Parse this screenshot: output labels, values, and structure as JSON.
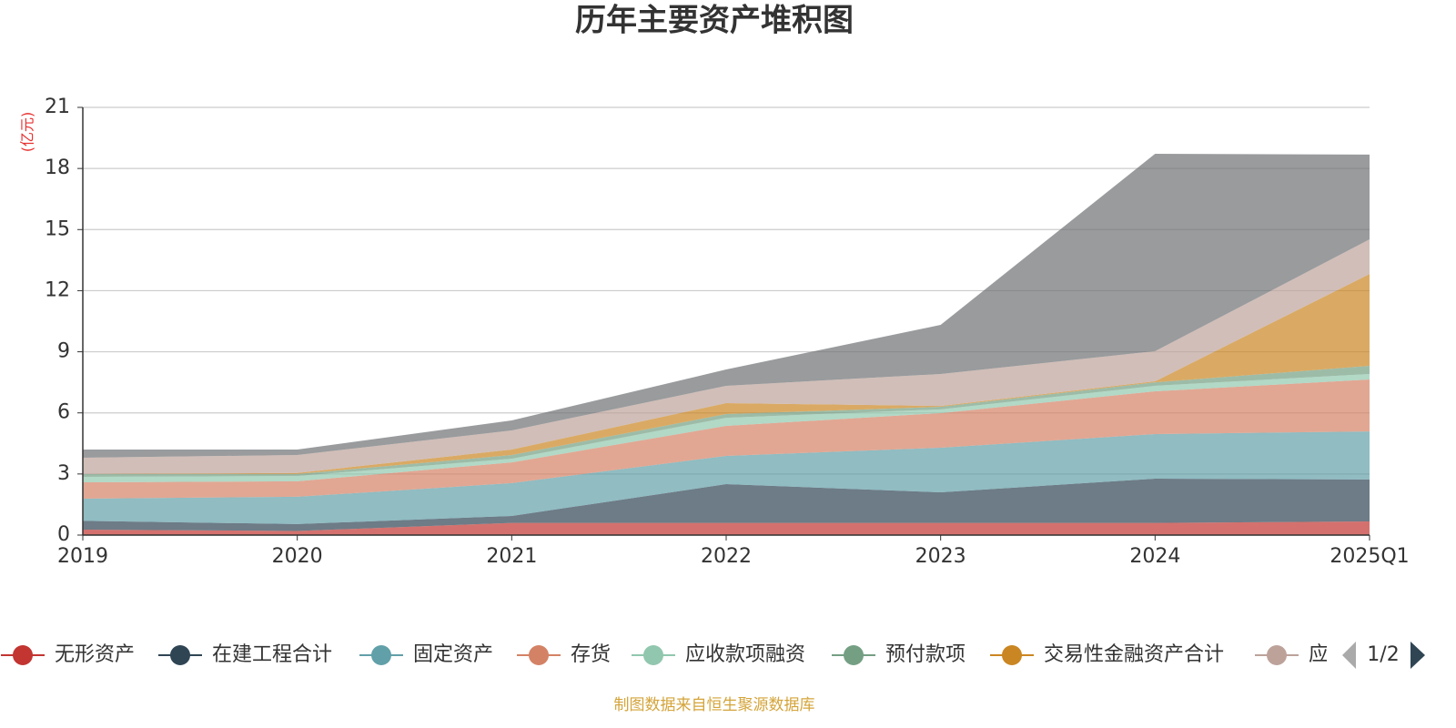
{
  "chart_data": {
    "type": "stacked-area",
    "title": "历年主要资产堆积图",
    "y_axis_label": "(亿元)",
    "categories": [
      "2019",
      "2020",
      "2021",
      "2022",
      "2023",
      "2024",
      "2025Q1"
    ],
    "ylim": [
      0,
      21
    ],
    "yticks": [
      0,
      3,
      6,
      9,
      12,
      15,
      18,
      21
    ],
    "grid": true,
    "legend_page": "1/2",
    "source": "制图数据来自恒生聚源数据库",
    "series": [
      {
        "name": "无形资产",
        "color": "#c23531",
        "values": [
          0.27,
          0.2,
          0.6,
          0.6,
          0.6,
          0.6,
          0.67
        ]
      },
      {
        "name": "在建工程合计",
        "color": "#2f4554",
        "values": [
          0.43,
          0.34,
          0.34,
          1.9,
          1.5,
          2.17,
          2.06
        ]
      },
      {
        "name": "固定资产",
        "color": "#61a0a8",
        "values": [
          1.09,
          1.34,
          1.61,
          1.39,
          2.19,
          2.19,
          2.36
        ]
      },
      {
        "name": "存货",
        "color": "#d48265",
        "values": [
          0.8,
          0.76,
          1.02,
          1.47,
          1.7,
          2.1,
          2.55
        ]
      },
      {
        "name": "应收款项融资",
        "color": "#91c7ae",
        "values": [
          0.27,
          0.26,
          0.18,
          0.4,
          0.18,
          0.27,
          0.27
        ]
      },
      {
        "name": "预付款项",
        "color": "#749f83",
        "values": [
          0.14,
          0.1,
          0.18,
          0.18,
          0.13,
          0.17,
          0.4
        ]
      },
      {
        "name": "交易性金融资产合计",
        "color": "#ca8622",
        "values": [
          0,
          0.05,
          0.27,
          0.54,
          0.04,
          0.05,
          4.51
        ]
      },
      {
        "name": "应",
        "color": "#bda29a",
        "values": [
          0.8,
          0.88,
          0.94,
          0.85,
          1.57,
          1.48,
          1.7
        ]
      },
      {
        "name": null,
        "color": "#6e7074",
        "values": [
          0.4,
          0.27,
          0.49,
          0.8,
          2.41,
          9.69,
          4.16
        ]
      }
    ]
  }
}
